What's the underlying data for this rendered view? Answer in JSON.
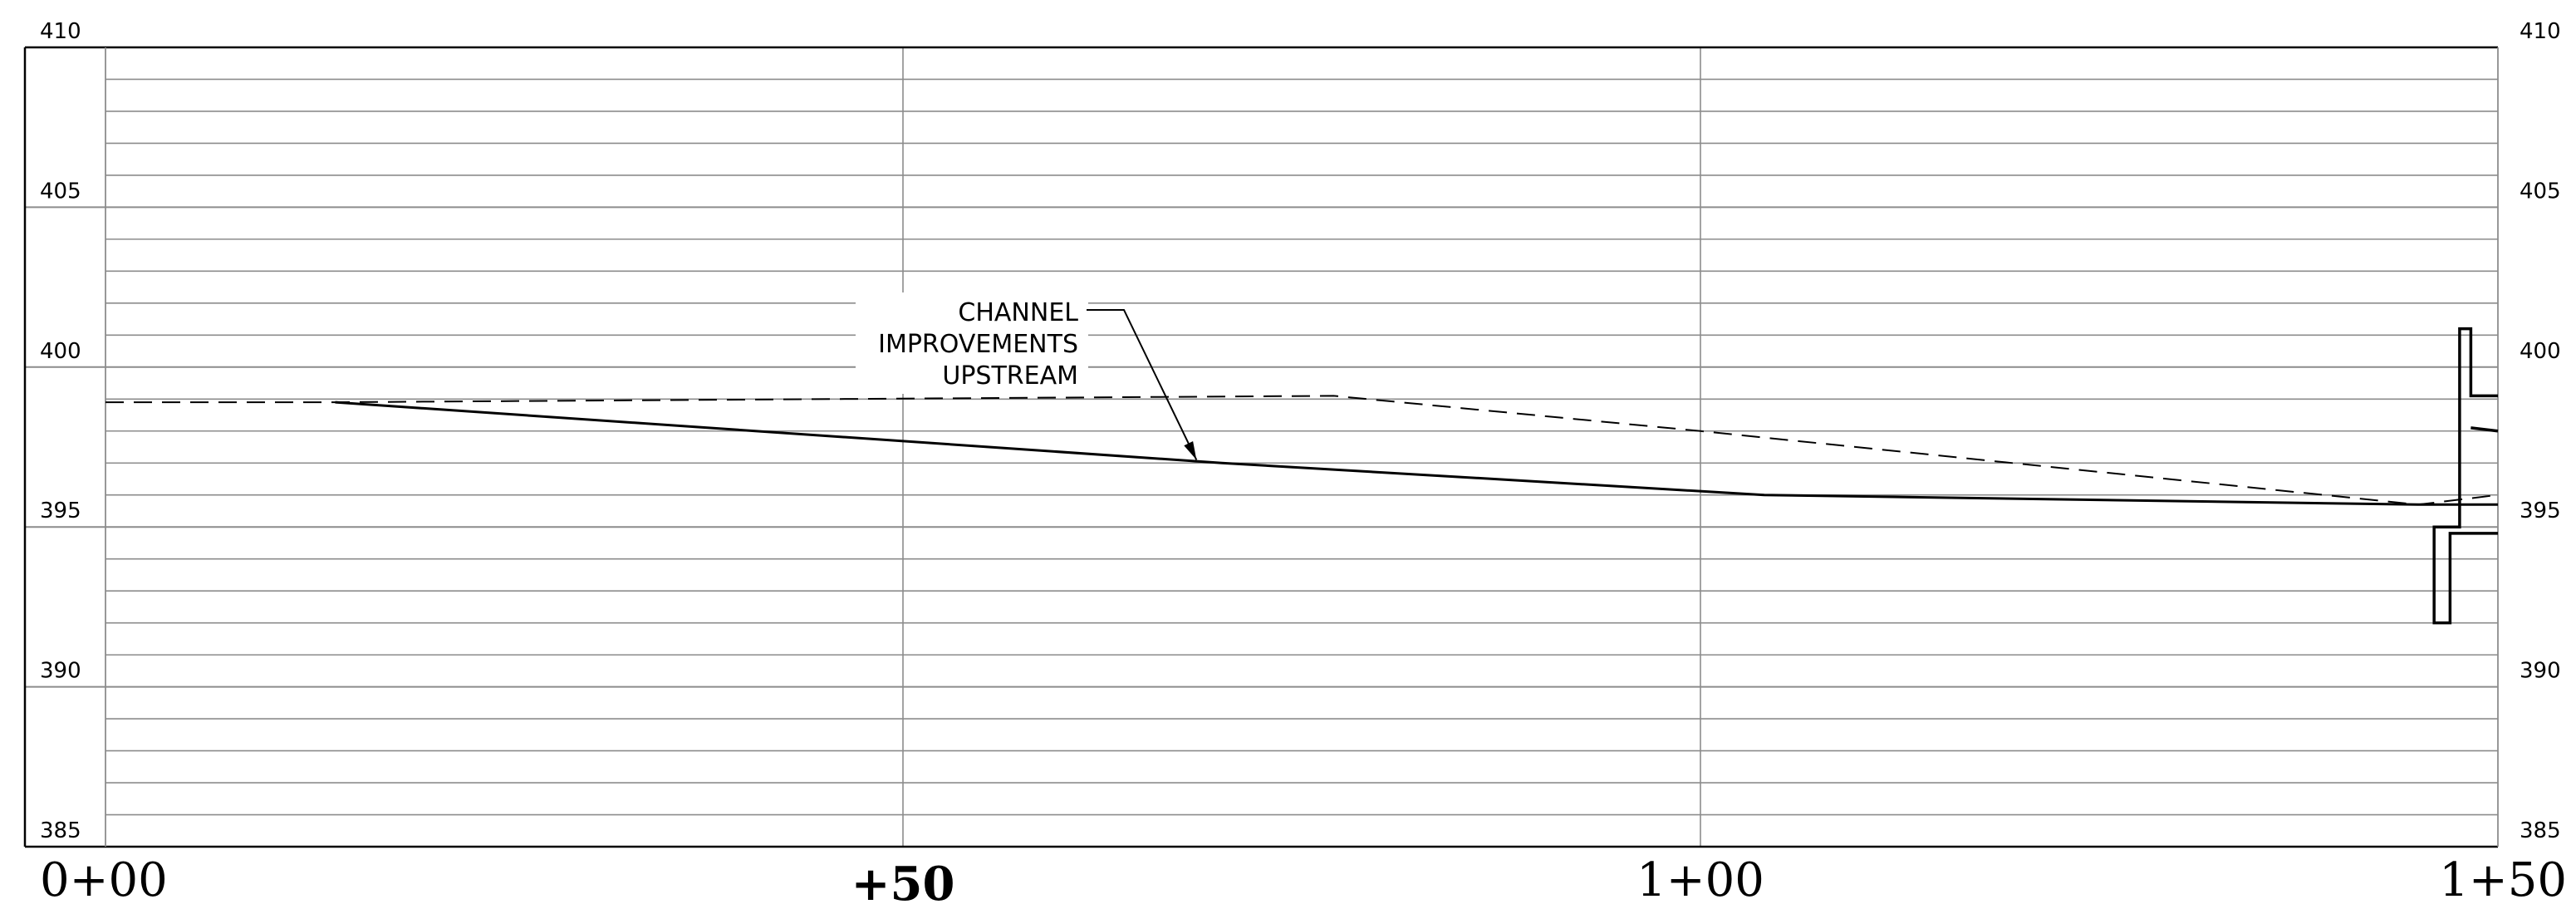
{
  "chart_data": {
    "type": "line",
    "title": "",
    "xlabel": "",
    "ylabel": "",
    "xlim": [
      0,
      150
    ],
    "ylim": [
      385,
      410
    ],
    "y_ticks": [
      385,
      390,
      395,
      400,
      405,
      410
    ],
    "x_ticks": [
      {
        "x": 0,
        "label": "0+00"
      },
      {
        "x": 50,
        "label": "+50"
      },
      {
        "x": 100,
        "label": "1+00"
      },
      {
        "x": 150,
        "label": "1+50"
      }
    ],
    "grid": {
      "horizontal_every": 1,
      "vertical_every": 50
    },
    "series": [
      {
        "style": "dashed",
        "x": [
          0,
          14.4,
          77,
          100,
          145,
          150
        ],
        "y": [
          398.9,
          398.9,
          399.1,
          398.0,
          395.7,
          396.0
        ]
      },
      {
        "style": "solid",
        "x": [
          14.4,
          70,
          104,
          145,
          150
        ],
        "y": [
          398.9,
          397.0,
          396.0,
          395.7,
          395.7
        ]
      }
    ],
    "structure": {
      "style": "solid",
      "x": [
        150,
        148.3,
        148.3,
        147.6,
        147.6,
        146.0,
        146.0,
        147.0,
        147.0,
        150
      ],
      "y": [
        399.1,
        399.1,
        401.2,
        401.2,
        395.0,
        395.0,
        392.0,
        392.0,
        394.8,
        394.8
      ],
      "cap": {
        "x": [
          148.3,
          150
        ],
        "y": [
          398.1,
          398.0
        ]
      }
    },
    "annotations": [
      {
        "lines": [
          "CHANNEL",
          "IMPROVEMENTS",
          "UPSTREAM"
        ],
        "points_to": {
          "x": 68.4,
          "y": 397.1
        }
      }
    ]
  }
}
